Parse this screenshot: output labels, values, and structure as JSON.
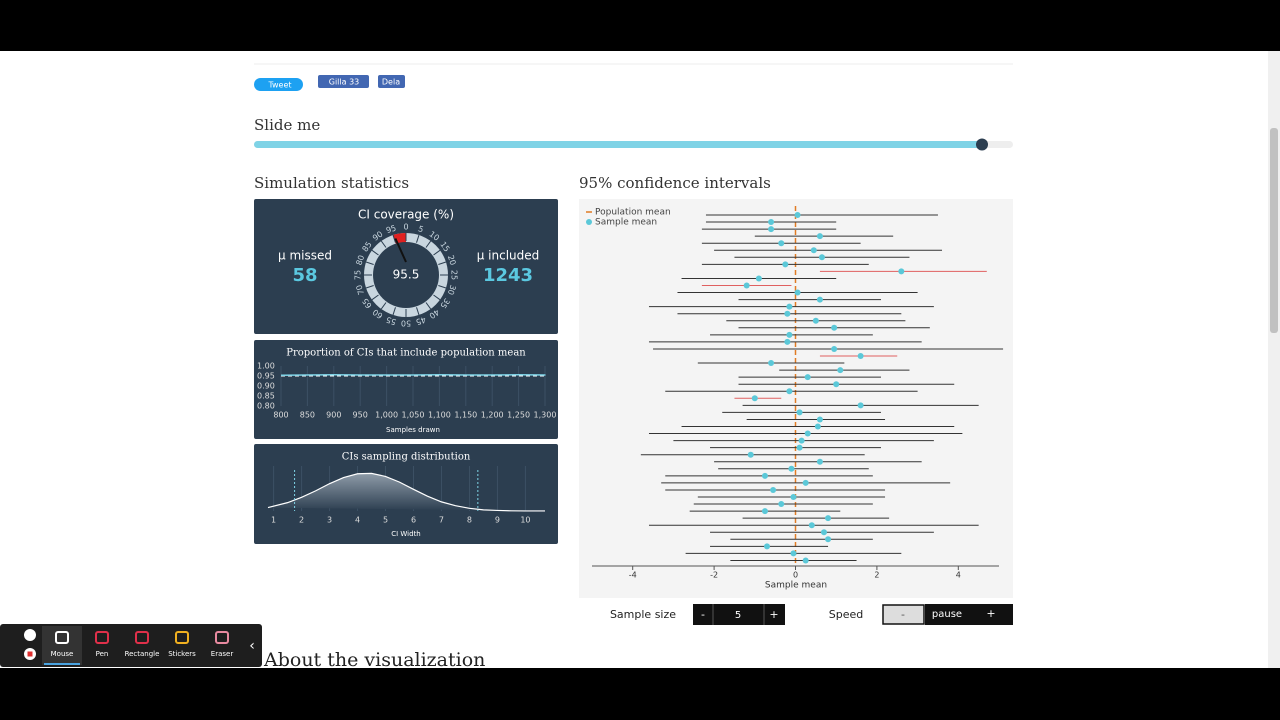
{
  "share": {
    "tweet": "Tweet",
    "like": "Gilla 33",
    "dela": "Dela"
  },
  "slider": {
    "label": "Slide me"
  },
  "statistics": {
    "title": "Simulation statistics",
    "coverage": {
      "title": "CI coverage (%)",
      "value": 95.5,
      "ticks": [
        0,
        5,
        10,
        15,
        20,
        25,
        30,
        35,
        40,
        45,
        50,
        55,
        60,
        65,
        70,
        75,
        80,
        85,
        90,
        95
      ],
      "missed_label": "μ missed",
      "missed": 58,
      "included_label": "μ included",
      "included": 1243
    },
    "proportion": {
      "type": "line",
      "title": "Proportion of CIs that include population mean",
      "x_label": "Samples drawn",
      "xlim": [
        800,
        1300
      ],
      "ylim": [
        0.8,
        1.0
      ],
      "xticks": [
        800,
        850,
        900,
        950,
        {
          "value": 1000,
          "label": "1,000"
        },
        {
          "value": 1050,
          "label": "1,050"
        },
        {
          "value": 1100,
          "label": "1,100"
        },
        {
          "value": 1150,
          "label": "1,150"
        },
        {
          "value": 1200,
          "label": "1,200"
        },
        {
          "value": 1250,
          "label": "1,250"
        },
        {
          "value": 1300,
          "label": "1,300"
        }
      ],
      "yticks": [
        {
          "value": 1.0,
          "label": "1.00"
        },
        {
          "value": 0.95,
          "label": "0.95"
        },
        {
          "value": 0.9,
          "label": "0.90"
        },
        {
          "value": 0.85,
          "label": "0.85"
        },
        {
          "value": 0.8,
          "label": "0.80"
        }
      ],
      "target": 0.95,
      "x": [
        800,
        850,
        900,
        950,
        1000,
        1050,
        1100,
        1150,
        1200,
        1250,
        1301
      ],
      "values": [
        0.954,
        0.955,
        0.956,
        0.955,
        0.955,
        0.955,
        0.956,
        0.955,
        0.955,
        0.956,
        0.955
      ]
    },
    "sampling": {
      "type": "area",
      "title": "CIs sampling distribution",
      "x_label": "CI Width",
      "xlim": [
        0.8,
        10.7
      ],
      "ylim": [
        0,
        1
      ],
      "xticks": [
        1,
        2,
        3,
        4,
        5,
        6,
        7,
        8,
        9,
        10
      ],
      "quantiles": [
        1.75,
        8.3
      ],
      "x": [
        0.8,
        1.5,
        2,
        2.5,
        3,
        3.5,
        4,
        4.5,
        5,
        5.5,
        6,
        6.5,
        7,
        7.5,
        8,
        8.5,
        9,
        9.5,
        10,
        10.7
      ],
      "values": [
        0.09,
        0.22,
        0.36,
        0.53,
        0.72,
        0.88,
        0.98,
        0.99,
        0.91,
        0.76,
        0.57,
        0.39,
        0.24,
        0.14,
        0.07,
        0.03,
        0.015,
        0.005,
        0.002,
        0.001
      ]
    }
  },
  "intervals": {
    "type": "interval",
    "title": "95% confidence intervals",
    "x_label": "Sample mean",
    "legend": [
      "Population mean",
      "Sample mean"
    ],
    "population_mean": 0,
    "xlim": [
      -5,
      5
    ],
    "xticks": [
      -4,
      -2,
      0,
      2,
      4
    ],
    "means": [
      0.05,
      -0.6,
      -0.6,
      0.6,
      -0.35,
      0.45,
      0.65,
      -0.25,
      2.6,
      -0.9,
      -1.2,
      0.05,
      0.6,
      -0.15,
      -0.2,
      0.5,
      0.95,
      -0.15,
      -0.2,
      0.95,
      1.6,
      -0.6,
      1.1,
      0.3,
      1.0,
      -0.15,
      -1.0,
      1.6,
      0.1,
      0.6,
      0.55,
      0.3,
      0.15,
      0.1,
      -1.1,
      0.6,
      -0.1,
      -0.75,
      0.25,
      -0.55,
      -0.05,
      -0.35,
      -0.75,
      0.8,
      0.4,
      0.7,
      0.8,
      -0.7,
      -0.05,
      0.25
    ],
    "lower": [
      -2.2,
      -2.2,
      -2.3,
      -1.0,
      -2.3,
      -2.0,
      -1.5,
      -2.3,
      0.6,
      -2.8,
      -2.3,
      -2.9,
      -1.4,
      -3.6,
      -2.9,
      -1.7,
      -1.4,
      -2.1,
      -3.6,
      -3.5,
      0.6,
      -2.4,
      -0.4,
      -1.4,
      -1.4,
      -3.2,
      -1.5,
      -1.3,
      -1.8,
      -1.2,
      -2.8,
      -3.6,
      -3.0,
      -2.1,
      -3.8,
      -2.0,
      -1.9,
      -3.2,
      -3.3,
      -3.2,
      -2.4,
      -2.5,
      -2.6,
      -1.3,
      -3.6,
      -2.1,
      -1.6,
      -2.1,
      -2.7,
      -1.6
    ],
    "upper": [
      3.5,
      1.0,
      1.0,
      2.4,
      1.6,
      3.6,
      2.8,
      1.8,
      4.7,
      1.0,
      -0.1,
      3.0,
      2.1,
      3.4,
      2.6,
      2.7,
      3.3,
      1.9,
      3.1,
      5.1,
      2.5,
      1.2,
      2.8,
      2.1,
      3.9,
      3.0,
      -0.35,
      4.5,
      2.1,
      2.2,
      3.9,
      4.1,
      3.4,
      2.1,
      1.7,
      3.1,
      1.8,
      1.9,
      3.8,
      2.2,
      2.2,
      1.9,
      1.1,
      2.3,
      4.5,
      3.4,
      1.9,
      0.8,
      2.6,
      1.5
    ]
  },
  "controls": {
    "sample_size_label": "Sample size",
    "minus": "-",
    "sample_size": 5,
    "plus": "+",
    "speed_label": "Speed",
    "speed_minus": "-",
    "pause": "pause",
    "speed_plus": "+"
  },
  "about": "About the visualization",
  "toolbar": [
    "Mouse",
    "Pen",
    "Rectangle",
    "Stickers",
    "Eraser"
  ]
}
